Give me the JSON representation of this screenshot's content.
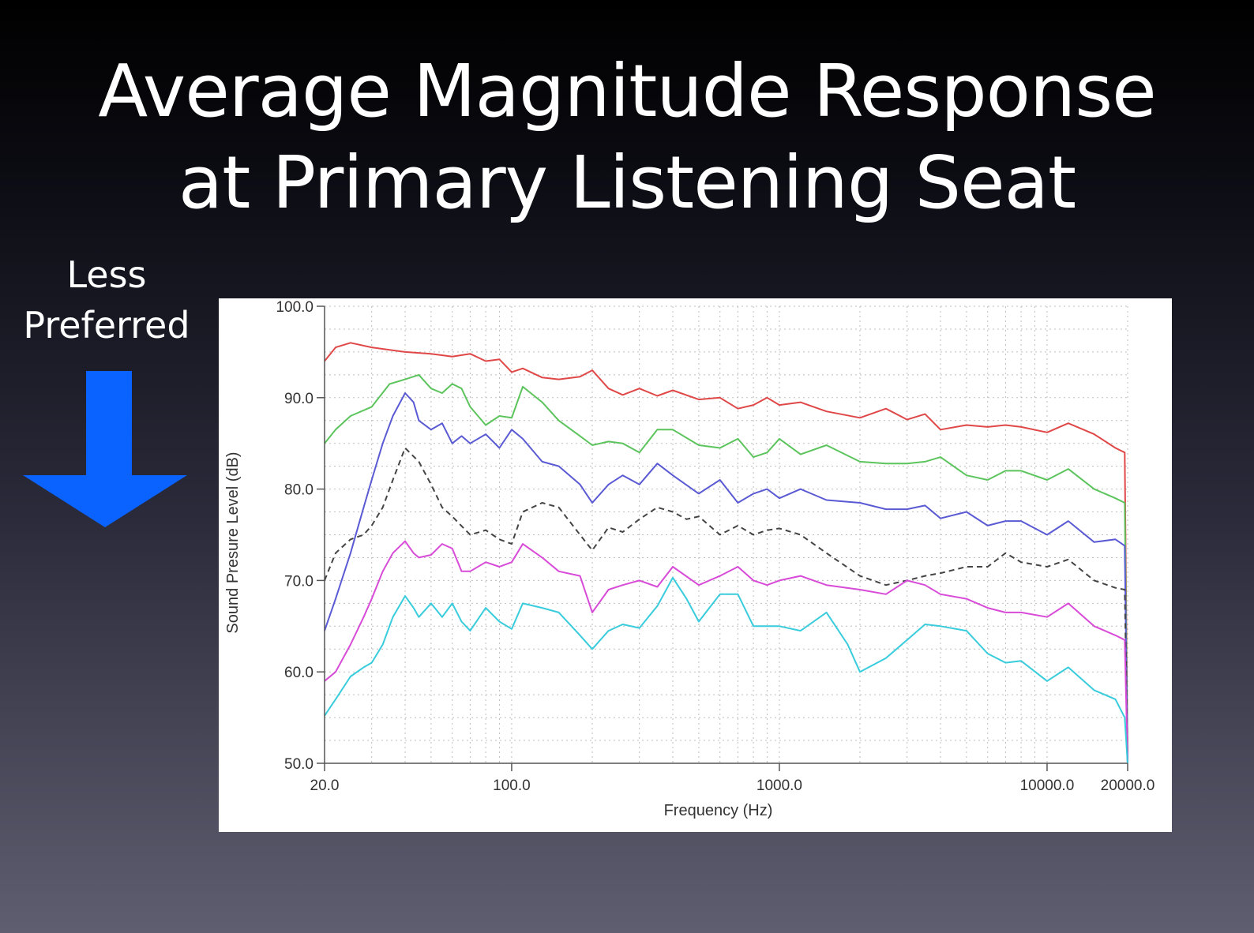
{
  "slide": {
    "title_line1": "Average Magnitude Response",
    "title_line2": "at Primary Listening Seat",
    "side_label_line1": "Less",
    "side_label_line2": "Preferred",
    "arrow_color": "#0a63ff",
    "arrow_icon": "arrow-down-icon"
  },
  "chart_data": {
    "type": "line",
    "xlabel": "Frequency (Hz)",
    "ylabel": "Sound Presure Level (dB)",
    "xscale": "log",
    "xlim": [
      20,
      20000
    ],
    "ylim": [
      50,
      100
    ],
    "grid": true,
    "yticks": [
      "50.0",
      "60.0",
      "70.0",
      "80.0",
      "90.0",
      "100.0"
    ],
    "ytick_values": [
      50,
      60,
      70,
      80,
      90,
      100
    ],
    "xticks": [
      "20.0",
      "100.0",
      "1000.0",
      "10000.0",
      "20000.0"
    ],
    "xtick_values": [
      20,
      100,
      1000,
      10000,
      20000
    ],
    "series": [
      {
        "color": "#e04848",
        "dash": false,
        "x": [
          20,
          22,
          25,
          30,
          40,
          50,
          60,
          70,
          80,
          90,
          100,
          110,
          130,
          150,
          180,
          200,
          230,
          260,
          300,
          350,
          400,
          500,
          600,
          700,
          800,
          900,
          1000,
          1200,
          1500,
          2000,
          2500,
          3000,
          3500,
          4000,
          5000,
          6000,
          7000,
          8000,
          10000,
          12000,
          15000,
          18000,
          19500,
          20000
        ],
        "y": [
          94,
          95.5,
          96,
          95.5,
          95,
          94.8,
          94.5,
          94.8,
          94,
          94.2,
          92.8,
          93.2,
          92.2,
          92,
          92.3,
          93,
          91,
          90.3,
          91,
          90.2,
          90.8,
          89.8,
          90,
          88.8,
          89.2,
          90,
          89.2,
          89.5,
          88.5,
          87.8,
          88.8,
          87.6,
          88.2,
          86.5,
          87,
          86.8,
          87,
          86.8,
          86.2,
          87.2,
          86,
          84.5,
          84,
          50
        ]
      },
      {
        "color": "#5cc45c",
        "dash": false,
        "x": [
          20,
          22,
          25,
          30,
          35,
          40,
          45,
          50,
          55,
          60,
          65,
          70,
          80,
          90,
          100,
          110,
          130,
          150,
          180,
          200,
          230,
          260,
          300,
          350,
          400,
          500,
          600,
          700,
          800,
          900,
          1000,
          1200,
          1500,
          2000,
          2500,
          3000,
          3500,
          4000,
          5000,
          6000,
          7000,
          8000,
          10000,
          12000,
          15000,
          18000,
          19500,
          20000
        ],
        "y": [
          85,
          86.5,
          88,
          89,
          91.5,
          92,
          92.5,
          91,
          90.5,
          91.5,
          91,
          89,
          87,
          88,
          87.8,
          91.2,
          89.5,
          87.5,
          85.8,
          84.8,
          85.2,
          85,
          84,
          86.5,
          86.5,
          84.8,
          84.5,
          85.5,
          83.5,
          84,
          85.5,
          83.8,
          84.8,
          83,
          82.8,
          82.8,
          83,
          83.5,
          81.5,
          81,
          82,
          82,
          81,
          82.2,
          80,
          79,
          78.5,
          50
        ]
      },
      {
        "color": "#5a5ad4",
        "dash": false,
        "x": [
          20,
          22,
          25,
          28,
          30,
          33,
          36,
          40,
          43,
          45,
          50,
          55,
          60,
          65,
          70,
          80,
          90,
          100,
          110,
          130,
          150,
          180,
          200,
          230,
          260,
          300,
          350,
          400,
          500,
          600,
          700,
          800,
          900,
          1000,
          1200,
          1500,
          2000,
          2500,
          3000,
          3500,
          4000,
          5000,
          6000,
          7000,
          8000,
          10000,
          12000,
          15000,
          18000,
          19500,
          20000
        ],
        "y": [
          64.5,
          68,
          73,
          78,
          81,
          85,
          88,
          90.5,
          89.5,
          87.5,
          86.5,
          87.2,
          85,
          85.8,
          85,
          86,
          84.5,
          86.5,
          85.5,
          83,
          82.5,
          80.5,
          78.5,
          80.5,
          81.5,
          80.5,
          82.8,
          81.5,
          79.5,
          81,
          78.5,
          79.5,
          80,
          79,
          80,
          78.8,
          78.5,
          77.8,
          77.8,
          78.2,
          76.8,
          77.5,
          76,
          76.5,
          76.5,
          75,
          76.5,
          74.2,
          74.5,
          73.8,
          50
        ]
      },
      {
        "color": "#444444",
        "dash": true,
        "x": [
          20,
          22,
          25,
          28,
          30,
          33,
          36,
          40,
          45,
          50,
          55,
          60,
          70,
          80,
          90,
          100,
          110,
          130,
          150,
          180,
          200,
          230,
          260,
          300,
          350,
          400,
          450,
          500,
          600,
          700,
          800,
          900,
          1000,
          1200,
          1500,
          2000,
          2500,
          3000,
          3500,
          4000,
          5000,
          6000,
          7000,
          8000,
          10000,
          12000,
          15000,
          18000,
          19500,
          20000
        ],
        "y": [
          70,
          73,
          74.5,
          75,
          76,
          78,
          81,
          84.5,
          83,
          80.5,
          78,
          77,
          75,
          75.5,
          74.5,
          74,
          77.5,
          78.5,
          78,
          75,
          73.3,
          75.8,
          75.3,
          76.7,
          78,
          77.5,
          76.7,
          77,
          75,
          76,
          75,
          75.5,
          75.7,
          75,
          73,
          70.5,
          69.5,
          70,
          70.5,
          70.8,
          71.5,
          71.5,
          73,
          72,
          71.5,
          72.3,
          70,
          69.2,
          69,
          50
        ]
      },
      {
        "color": "#d84ad8",
        "dash": false,
        "x": [
          20,
          22,
          25,
          28,
          30,
          33,
          36,
          40,
          43,
          45,
          50,
          55,
          60,
          65,
          70,
          80,
          90,
          100,
          110,
          130,
          150,
          180,
          200,
          230,
          260,
          300,
          350,
          400,
          500,
          600,
          700,
          800,
          900,
          1000,
          1200,
          1500,
          2000,
          2500,
          3000,
          3500,
          4000,
          5000,
          6000,
          7000,
          8000,
          10000,
          12000,
          15000,
          18000,
          19500,
          20000
        ],
        "y": [
          59,
          60,
          63,
          66,
          68,
          71,
          73,
          74.3,
          73,
          72.5,
          72.8,
          74,
          73.5,
          71,
          71,
          72,
          71.5,
          72,
          74,
          72.5,
          71,
          70.5,
          66.5,
          69,
          69.5,
          70,
          69.3,
          71.5,
          69.5,
          70.5,
          71.5,
          70,
          69.5,
          70,
          70.5,
          69.5,
          69,
          68.5,
          70,
          69.5,
          68.5,
          68,
          67,
          66.5,
          66.5,
          66,
          67.5,
          65,
          64,
          63.5,
          50
        ]
      },
      {
        "color": "#38ccdc",
        "dash": false,
        "x": [
          20,
          22,
          25,
          28,
          30,
          33,
          36,
          40,
          43,
          45,
          50,
          55,
          60,
          65,
          70,
          80,
          90,
          100,
          110,
          130,
          150,
          180,
          200,
          230,
          260,
          300,
          350,
          400,
          450,
          500,
          600,
          700,
          800,
          900,
          1000,
          1200,
          1500,
          1800,
          2000,
          2500,
          3000,
          3500,
          4000,
          5000,
          6000,
          7000,
          8000,
          10000,
          12000,
          15000,
          18000,
          19500,
          20000
        ],
        "y": [
          55.2,
          57,
          59.5,
          60.5,
          61,
          63,
          66,
          68.3,
          67,
          66,
          67.5,
          66,
          67.5,
          65.5,
          64.5,
          67,
          65.5,
          64.7,
          67.5,
          67,
          66.5,
          64,
          62.5,
          64.5,
          65.2,
          64.8,
          67.2,
          70.3,
          68,
          65.5,
          68.5,
          68.5,
          65,
          65,
          65,
          64.5,
          66.5,
          63,
          60,
          61.5,
          63.5,
          65.2,
          65,
          64.5,
          62,
          61,
          61.2,
          59,
          60.5,
          58,
          57,
          55,
          50
        ]
      }
    ]
  }
}
